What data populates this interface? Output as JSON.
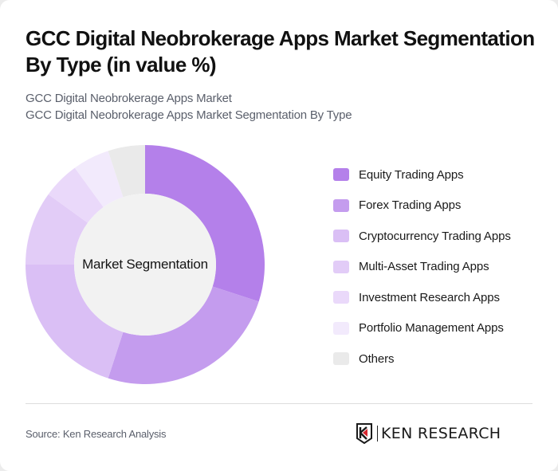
{
  "header": {
    "title": "GCC Digital Neobrokerage Apps Market Segmentation By Type (in value %)",
    "subtitle_line1": "GCC Digital Neobrokerage Apps Market",
    "subtitle_line2": "GCC Digital Neobrokerage Apps Market Segmentation By Type"
  },
  "chart": {
    "center_label": "Market Segmentation"
  },
  "legend": {
    "items": [
      {
        "label": "Equity Trading Apps",
        "color": "#B480EA"
      },
      {
        "label": "Forex Trading Apps",
        "color": "#C49CEE"
      },
      {
        "label": "Cryptocurrency Trading Apps",
        "color": "#DABFF5"
      },
      {
        "label": "Multi-Asset Trading Apps",
        "color": "#E2CCF7"
      },
      {
        "label": "Investment Research Apps",
        "color": "#EAD9FA"
      },
      {
        "label": "Portfolio Management Apps",
        "color": "#F2EAFC"
      },
      {
        "label": "Others",
        "color": "#EAEAEA"
      }
    ]
  },
  "footer": {
    "source": "Source: Ken Research Analysis",
    "logo_text": "KEN RESEARCH"
  },
  "chart_data": {
    "type": "pie",
    "subtype": "donut",
    "title": "GCC Digital Neobrokerage Apps Market Segmentation By Type (in value %)",
    "subtitle": "GCC Digital Neobrokerage Apps Market Segmentation By Type",
    "center_label": "Market Segmentation",
    "categories": [
      "Equity Trading Apps",
      "Forex Trading Apps",
      "Cryptocurrency Trading Apps",
      "Multi-Asset Trading Apps",
      "Investment Research Apps",
      "Portfolio Management Apps",
      "Others"
    ],
    "values": [
      30,
      25,
      20,
      10,
      5,
      5,
      5
    ],
    "colors": [
      "#B480EA",
      "#C49CEE",
      "#DABFF5",
      "#E2CCF7",
      "#EAD9FA",
      "#F2EAFC",
      "#EAEAEA"
    ],
    "unit": "%",
    "legend_position": "right",
    "start_angle": "12 o'clock, clockwise"
  }
}
